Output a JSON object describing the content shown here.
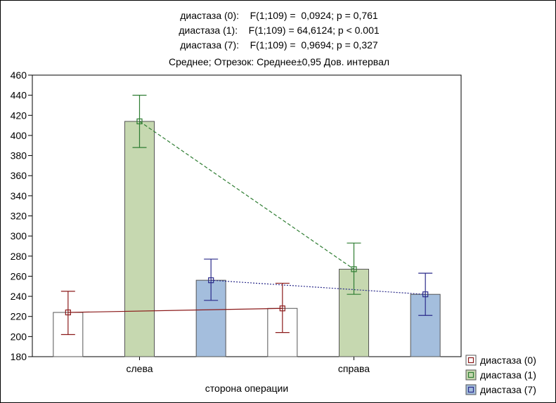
{
  "chart_data": {
    "type": "bar",
    "title_lines": [
      "диастаза (0):    F(1;109) =  0,0924; p = 0,761",
      "диастаза (1):    F(1;109) = 64,6124; p < 0.001",
      "диастаза (7):    F(1;109) =  0,9694; p = 0,327"
    ],
    "subtitle": "Среднее; Отрезок: Среднее±0,95 Дов. интервал",
    "xlabel": "сторона операции",
    "ylabel": "",
    "categories": [
      "слева",
      "справа"
    ],
    "ylim": [
      180,
      460
    ],
    "yticks": [
      180,
      200,
      220,
      240,
      260,
      280,
      300,
      320,
      340,
      360,
      380,
      400,
      420,
      440,
      460
    ],
    "grid": false,
    "legend_position": "bottom-right",
    "series": [
      {
        "name": "диастаза (0)",
        "values": [
          224,
          228
        ],
        "ci_low": [
          202,
          204
        ],
        "ci_high": [
          245,
          253
        ],
        "color": "#8b1a1a",
        "fill": "#ffffff",
        "line_style": "solid"
      },
      {
        "name": "диастаза (1)",
        "values": [
          414,
          267
        ],
        "ci_low": [
          388,
          242
        ],
        "ci_high": [
          440,
          293
        ],
        "color": "#2e7d32",
        "fill": "#c6d8b0",
        "line_style": "dashed"
      },
      {
        "name": "диастаза (7)",
        "values": [
          256,
          242
        ],
        "ci_low": [
          236,
          221
        ],
        "ci_high": [
          277,
          263
        ],
        "color": "#2a2a8a",
        "fill": "#a4bedd",
        "line_style": "dotted"
      }
    ]
  }
}
